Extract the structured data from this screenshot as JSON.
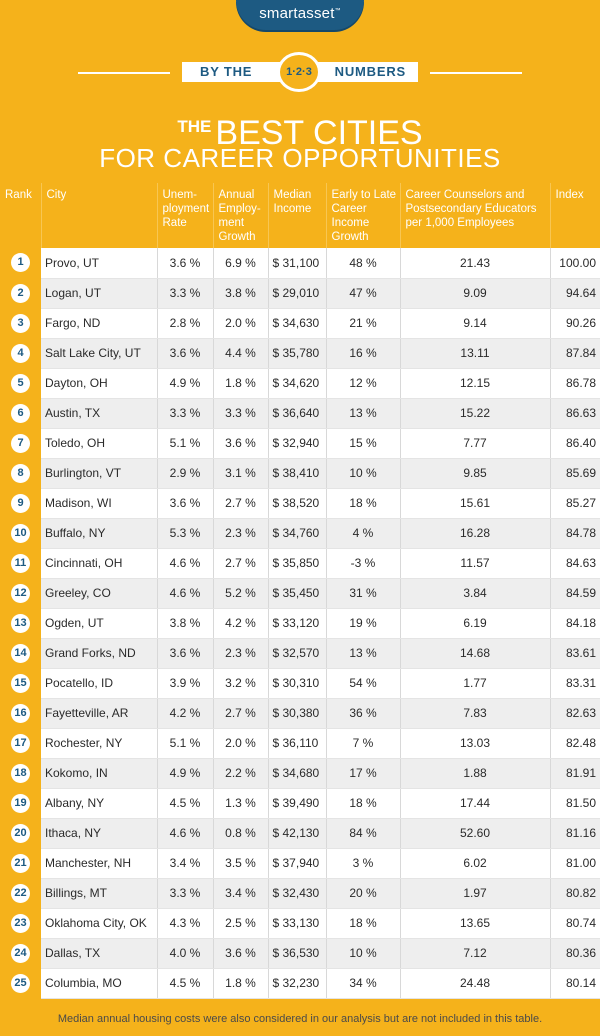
{
  "brand": {
    "name": "smartasset",
    "tm": "™"
  },
  "banner": {
    "left": "BY THE",
    "badge": "1·2·3",
    "right": "NUMBERS"
  },
  "title": {
    "the": "THE",
    "line1": "BEST CITIES",
    "line2": "FOR CAREER OPPORTUNITIES"
  },
  "headers": {
    "rank": "Rank",
    "city": "City",
    "unemp": "Unem-ployment Rate",
    "growth": "Annual Employ-ment Growth",
    "income": "Median Income",
    "early": "Early to Late Career Income Growth",
    "counselors": "Career Counselors and Postsecondary Educators per 1,000 Employees",
    "index": "Index"
  },
  "rows": [
    {
      "rank": "1",
      "city": "Provo, UT",
      "unemp": "3.6 %",
      "growth": "6.9 %",
      "income": "$  31,100",
      "early": "48 %",
      "counselors": "21.43",
      "index": "100.00"
    },
    {
      "rank": "2",
      "city": "Logan, UT",
      "unemp": "3.3 %",
      "growth": "3.8 %",
      "income": "$ 29,010",
      "early": "47 %",
      "counselors": "9.09",
      "index": "94.64"
    },
    {
      "rank": "3",
      "city": "Fargo, ND",
      "unemp": "2.8 %",
      "growth": "2.0 %",
      "income": "$ 34,630",
      "early": "21 %",
      "counselors": "9.14",
      "index": "90.26"
    },
    {
      "rank": "4",
      "city": "Salt Lake City, UT",
      "unemp": "3.6 %",
      "growth": "4.4 %",
      "income": "$ 35,780",
      "early": "16 %",
      "counselors": "13.11",
      "index": "87.84"
    },
    {
      "rank": "5",
      "city": "Dayton, OH",
      "unemp": "4.9 %",
      "growth": "1.8 %",
      "income": "$ 34,620",
      "early": "12 %",
      "counselors": "12.15",
      "index": "86.78"
    },
    {
      "rank": "6",
      "city": "Austin, TX",
      "unemp": "3.3 %",
      "growth": "3.3 %",
      "income": "$ 36,640",
      "early": "13 %",
      "counselors": "15.22",
      "index": "86.63"
    },
    {
      "rank": "7",
      "city": "Toledo, OH",
      "unemp": "5.1 %",
      "growth": "3.6 %",
      "income": "$ 32,940",
      "early": "15 %",
      "counselors": "7.77",
      "index": "86.40"
    },
    {
      "rank": "8",
      "city": "Burlington, VT",
      "unemp": "2.9 %",
      "growth": "3.1 %",
      "income": "$  38,410",
      "early": "10 %",
      "counselors": "9.85",
      "index": "85.69"
    },
    {
      "rank": "9",
      "city": "Madison, WI",
      "unemp": "3.6 %",
      "growth": "2.7 %",
      "income": "$ 38,520",
      "early": "18 %",
      "counselors": "15.61",
      "index": "85.27"
    },
    {
      "rank": "10",
      "city": "Buffalo, NY",
      "unemp": "5.3 %",
      "growth": "2.3 %",
      "income": "$ 34,760",
      "early": "4 %",
      "counselors": "16.28",
      "index": "84.78"
    },
    {
      "rank": "11",
      "city": "Cincinnati, OH",
      "unemp": "4.6 %",
      "growth": "2.7 %",
      "income": "$ 35,850",
      "early": "-3 %",
      "counselors": "11.57",
      "index": "84.63"
    },
    {
      "rank": "12",
      "city": "Greeley, CO",
      "unemp": "4.6 %",
      "growth": "5.2 %",
      "income": "$ 35,450",
      "early": "31 %",
      "counselors": "3.84",
      "index": "84.59"
    },
    {
      "rank": "13",
      "city": "Ogden, UT",
      "unemp": "3.8 %",
      "growth": "4.2 %",
      "income": "$  33,120",
      "early": "19 %",
      "counselors": "6.19",
      "index": "84.18"
    },
    {
      "rank": "14",
      "city": "Grand Forks, ND",
      "unemp": "3.6 %",
      "growth": "2.3 %",
      "income": "$ 32,570",
      "early": "13 %",
      "counselors": "14.68",
      "index": "83.61"
    },
    {
      "rank": "15",
      "city": "Pocatello, ID",
      "unemp": "3.9 %",
      "growth": "3.2 %",
      "income": "$  30,310",
      "early": "54 %",
      "counselors": "1.77",
      "index": "83.31"
    },
    {
      "rank": "16",
      "city": "Fayetteville, AR",
      "unemp": "4.2 %",
      "growth": "2.7 %",
      "income": "$ 30,380",
      "early": "36 %",
      "counselors": "7.83",
      "index": "82.63"
    },
    {
      "rank": "17",
      "city": "Rochester, NY",
      "unemp": "5.1 %",
      "growth": "2.0 %",
      "income": "$  36,110",
      "early": "7 %",
      "counselors": "13.03",
      "index": "82.48"
    },
    {
      "rank": "18",
      "city": "Kokomo, IN",
      "unemp": "4.9 %",
      "growth": "2.2 %",
      "income": "$ 34,680",
      "early": "17 %",
      "counselors": "1.88",
      "index": "81.91"
    },
    {
      "rank": "19",
      "city": "Albany, NY",
      "unemp": "4.5 %",
      "growth": "1.3 %",
      "income": "$ 39,490",
      "early": "18 %",
      "counselors": "17.44",
      "index": "81.50"
    },
    {
      "rank": "20",
      "city": "Ithaca, NY",
      "unemp": "4.6 %",
      "growth": "0.8 %",
      "income": "$  42,130",
      "early": "84 %",
      "counselors": "52.60",
      "index": "81.16"
    },
    {
      "rank": "21",
      "city": "Manchester, NH",
      "unemp": "3.4 %",
      "growth": "3.5 %",
      "income": "$ 37,940",
      "early": "3 %",
      "counselors": "6.02",
      "index": "81.00"
    },
    {
      "rank": "22",
      "city": "Billings, MT",
      "unemp": "3.3 %",
      "growth": "3.4 %",
      "income": "$ 32,430",
      "early": "20 %",
      "counselors": "1.97",
      "index": "80.82"
    },
    {
      "rank": "23",
      "city": "Oklahoma City, OK",
      "unemp": "4.3 %",
      "growth": "2.5 %",
      "income": "$  33,130",
      "early": "18 %",
      "counselors": "13.65",
      "index": "80.74"
    },
    {
      "rank": "24",
      "city": "Dallas, TX",
      "unemp": "4.0 %",
      "growth": "3.6 %",
      "income": "$ 36,530",
      "early": "10 %",
      "counselors": "7.12",
      "index": "80.36"
    },
    {
      "rank": "25",
      "city": "Columbia, MO",
      "unemp": "4.5 %",
      "growth": "1.8 %",
      "income": "$ 32,230",
      "early": "34 %",
      "counselors": "24.48",
      "index": "80.14"
    }
  ],
  "footnote": "Median annual housing costs were also considered in our analysis but are not included in this table.",
  "colors": {
    "background": "#f5b21b",
    "brand_blue": "#1d5a82",
    "row_alt": "#eeeeee"
  }
}
